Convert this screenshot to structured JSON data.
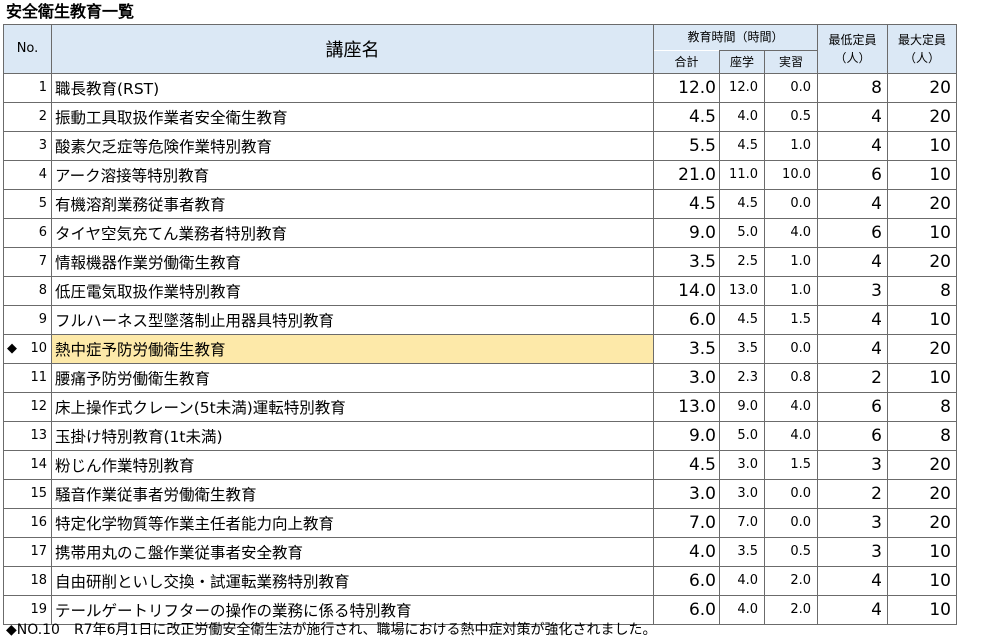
{
  "title": "安全衛生教育一覧",
  "headers": {
    "no": "No.",
    "course": "講座名",
    "hours": "教育時間（時間）",
    "total": "合計",
    "classroom": "座学",
    "practical": "実習",
    "min_cap_l1": "最低定員",
    "min_cap_l2": "（人）",
    "max_cap_l1": "最大定員",
    "max_cap_l2": "（人）"
  },
  "rows": [
    {
      "no": "1",
      "name": "職長教育(RST)",
      "total": "12.0",
      "classroom": "12.0",
      "practical": "0.0",
      "min": "8",
      "max": "20"
    },
    {
      "no": "2",
      "name": "振動工具取扱作業者安全衛生教育",
      "total": "4.5",
      "classroom": "4.0",
      "practical": "0.5",
      "min": "4",
      "max": "20"
    },
    {
      "no": "3",
      "name": "酸素欠乏症等危険作業特別教育",
      "total": "5.5",
      "classroom": "4.5",
      "practical": "1.0",
      "min": "4",
      "max": "10"
    },
    {
      "no": "4",
      "name": "アーク溶接等特別教育",
      "total": "21.0",
      "classroom": "11.0",
      "practical": "10.0",
      "min": "6",
      "max": "10"
    },
    {
      "no": "5",
      "name": "有機溶剤業務従事者教育",
      "total": "4.5",
      "classroom": "4.5",
      "practical": "0.0",
      "min": "4",
      "max": "20"
    },
    {
      "no": "6",
      "name": "タイヤ空気充てん業務者特別教育",
      "total": "9.0",
      "classroom": "5.0",
      "practical": "4.0",
      "min": "6",
      "max": "10"
    },
    {
      "no": "7",
      "name": "情報機器作業労働衛生教育",
      "total": "3.5",
      "classroom": "2.5",
      "practical": "1.0",
      "min": "4",
      "max": "20"
    },
    {
      "no": "8",
      "name": "低圧電気取扱作業特別教育",
      "total": "14.0",
      "classroom": "13.0",
      "practical": "1.0",
      "min": "3",
      "max": "8"
    },
    {
      "no": "9",
      "name": "フルハーネス型墜落制止用器具特別教育",
      "total": "6.0",
      "classroom": "4.5",
      "practical": "1.5",
      "min": "4",
      "max": "10"
    },
    {
      "no": "10",
      "mark": "◆",
      "name": "熱中症予防労働衛生教育",
      "total": "3.5",
      "classroom": "3.5",
      "practical": "0.0",
      "min": "4",
      "max": "20"
    },
    {
      "no": "11",
      "name": "腰痛予防労働衛生教育",
      "total": "3.0",
      "classroom": "2.3",
      "practical": "0.8",
      "min": "2",
      "max": "10"
    },
    {
      "no": "12",
      "name": "床上操作式クレーン(5t未満)運転特別教育",
      "total": "13.0",
      "classroom": "9.0",
      "practical": "4.0",
      "min": "6",
      "max": "8"
    },
    {
      "no": "13",
      "name": "玉掛け特別教育(1t未満)",
      "total": "9.0",
      "classroom": "5.0",
      "practical": "4.0",
      "min": "6",
      "max": "8"
    },
    {
      "no": "14",
      "name": "粉じん作業特別教育",
      "total": "4.5",
      "classroom": "3.0",
      "practical": "1.5",
      "min": "3",
      "max": "20"
    },
    {
      "no": "15",
      "name": "騒音作業従事者労働衛生教育",
      "total": "3.0",
      "classroom": "3.0",
      "practical": "0.0",
      "min": "2",
      "max": "20"
    },
    {
      "no": "16",
      "name": "特定化学物質等作業主任者能力向上教育",
      "total": "7.0",
      "classroom": "7.0",
      "practical": "0.0",
      "min": "3",
      "max": "20"
    },
    {
      "no": "17",
      "name": "携帯用丸のこ盤作業従事者安全教育",
      "total": "4.0",
      "classroom": "3.5",
      "practical": "0.5",
      "min": "3",
      "max": "10"
    },
    {
      "no": "18",
      "name": "自由研削といし交換・試運転業務特別教育",
      "total": "6.0",
      "classroom": "4.0",
      "practical": "2.0",
      "min": "4",
      "max": "10"
    },
    {
      "no": "19",
      "name": "テールゲートリフターの操作の業務に係る特別教育",
      "total": "6.0",
      "classroom": "4.0",
      "practical": "2.0",
      "min": "4",
      "max": "10"
    }
  ],
  "highlight_color": "#fde9a9",
  "header_color": "#dbe8f5",
  "footnote": "◆NO.10　R7年6月1日に改正労働安全衛生法が施行され、職場における熱中症対策が強化されました。"
}
